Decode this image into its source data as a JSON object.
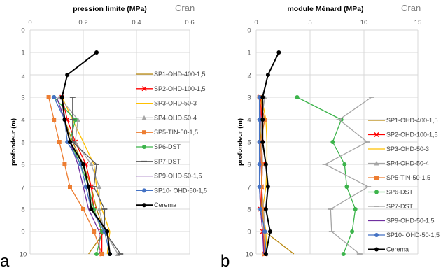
{
  "chart_data": [
    {
      "type": "line",
      "panel_label": "a",
      "title": "pression limite (MPa)",
      "corner_label": "Cran",
      "xlabel": "",
      "ylabel": "profondeur (m)",
      "xlim": [
        0,
        0.6
      ],
      "ylim": [
        0,
        10
      ],
      "x_ticks": [
        "0",
        "0.2",
        "0.4",
        "0.6"
      ],
      "x_tick_values": [
        0,
        0.2,
        0.4,
        0.6
      ],
      "y_ticks": [
        "0",
        "1",
        "2",
        "3",
        "4",
        "5",
        "6",
        "7",
        "8",
        "9",
        "10"
      ],
      "y_tick_values": [
        0,
        1,
        2,
        3,
        4,
        5,
        6,
        7,
        8,
        9,
        10
      ],
      "y_reversed": true,
      "legend_position": "right",
      "series": [
        {
          "name": "SP1-OHD-400-1,5",
          "color": "#b8860b",
          "marker": "none",
          "points": [
            [
              0.12,
              3
            ],
            [
              0.13,
              4
            ],
            [
              0.16,
              5
            ],
            [
              0.2,
              6
            ],
            [
              0.23,
              7
            ],
            [
              0.25,
              8
            ],
            [
              0.28,
              9
            ],
            [
              0.22,
              10
            ]
          ]
        },
        {
          "name": "SP2-OHD-100-1,5",
          "color": "#ff0000",
          "marker": "x",
          "points": [
            [
              0.12,
              3
            ],
            [
              0.14,
              4
            ],
            [
              0.17,
              5
            ],
            [
              0.21,
              6
            ],
            [
              0.23,
              7
            ],
            [
              0.24,
              8
            ],
            [
              0.27,
              9
            ],
            [
              0.27,
              10
            ]
          ]
        },
        {
          "name": "SP3-OHD-50-3",
          "color": "#ffc000",
          "marker": "none",
          "points": [
            [
              0.12,
              3
            ],
            [
              0.16,
              4
            ],
            [
              0.2,
              5
            ],
            [
              0.24,
              6
            ],
            [
              0.25,
              7
            ],
            [
              0.27,
              8
            ],
            [
              0.3,
              9
            ],
            [
              0.29,
              10
            ]
          ]
        },
        {
          "name": "SP4-OHD-50-4",
          "color": "#a5a5a5",
          "marker": "triangle",
          "points": [
            [
              0.11,
              3
            ],
            [
              0.18,
              4
            ],
            [
              0.17,
              5
            ],
            [
              0.23,
              6
            ],
            [
              0.26,
              7
            ],
            [
              0.26,
              8
            ],
            [
              0.28,
              9
            ],
            [
              0.33,
              10
            ]
          ]
        },
        {
          "name": "SP5-TIN-50-1,5",
          "color": "#ed7d31",
          "marker": "square",
          "points": [
            [
              0.07,
              3
            ],
            [
              0.09,
              4
            ],
            [
              0.11,
              5
            ],
            [
              0.13,
              6
            ],
            [
              0.15,
              7
            ],
            [
              0.2,
              8
            ],
            [
              0.24,
              9
            ],
            [
              0.27,
              10
            ]
          ]
        },
        {
          "name": "SP6-DST",
          "color": "#3cb44b",
          "marker": "circle",
          "points": [
            [
              0.09,
              3
            ],
            [
              0.17,
              4
            ],
            [
              0.15,
              5
            ],
            [
              0.19,
              6
            ],
            [
              0.22,
              7
            ],
            [
              0.24,
              8
            ],
            [
              0.27,
              9
            ],
            [
              0.25,
              10
            ]
          ]
        },
        {
          "name": "SP7-DST",
          "color": "#595959",
          "marker": "dash",
          "points": [
            [
              0.16,
              3
            ],
            [
              0.16,
              4
            ],
            [
              0.16,
              5
            ],
            [
              0.25,
              6
            ],
            [
              0.24,
              7
            ],
            [
              0.28,
              8
            ],
            [
              0.28,
              9
            ],
            [
              0.34,
              10
            ]
          ]
        },
        {
          "name": "SP9-OHD-50-1,5",
          "color": "#7030a0",
          "marker": "none",
          "points": [
            [
              0.1,
              3
            ],
            [
              0.13,
              4
            ],
            [
              0.15,
              5
            ],
            [
              0.18,
              6
            ],
            [
              0.2,
              7
            ],
            [
              0.22,
              8
            ],
            [
              0.26,
              9
            ],
            [
              0.26,
              10
            ]
          ]
        },
        {
          "name": "SP10- OHD-50-1,5",
          "color": "#4472c4",
          "marker": "circle",
          "points": [
            [
              0.09,
              3
            ],
            [
              0.13,
              4
            ],
            [
              0.14,
              5
            ],
            [
              0.19,
              6
            ],
            [
              0.21,
              7
            ],
            [
              0.23,
              8
            ],
            [
              0.28,
              9
            ],
            [
              0.3,
              10
            ]
          ]
        },
        {
          "name": "Cerema",
          "color": "#000000",
          "marker": "circle",
          "width": 2,
          "points": [
            [
              0.25,
              1
            ],
            [
              0.14,
              2
            ],
            [
              0.12,
              3
            ],
            [
              0.13,
              4
            ],
            [
              0.15,
              5
            ],
            [
              0.2,
              6
            ],
            [
              0.22,
              7
            ],
            [
              0.23,
              8
            ],
            [
              0.29,
              9
            ],
            [
              0.3,
              10
            ]
          ]
        }
      ]
    },
    {
      "type": "line",
      "panel_label": "b",
      "title": "module Ménard (MPa)",
      "corner_label": "Cran",
      "xlabel": "",
      "ylabel": "profondeur (m)",
      "xlim": [
        0,
        15
      ],
      "ylim": [
        0,
        10
      ],
      "x_ticks": [
        "0",
        "5",
        "10",
        "15"
      ],
      "x_tick_values": [
        0,
        5,
        10,
        15
      ],
      "y_ticks": [
        "0",
        "1",
        "2",
        "3",
        "4",
        "5",
        "6",
        "7",
        "8",
        "9",
        "10"
      ],
      "y_tick_values": [
        0,
        1,
        2,
        3,
        4,
        5,
        6,
        7,
        8,
        9,
        10
      ],
      "y_reversed": true,
      "legend_position": "right",
      "series": [
        {
          "name": "SP1-OHD-400-1,5",
          "color": "#b8860b",
          "marker": "none",
          "points": [
            [
              0.5,
              3
            ],
            [
              0.5,
              4
            ],
            [
              0.4,
              5
            ],
            [
              0.5,
              6
            ],
            [
              0.5,
              7
            ],
            [
              0.5,
              8
            ],
            [
              0.8,
              9
            ],
            [
              3.5,
              10
            ]
          ]
        },
        {
          "name": "SP2-OHD-100-1,5",
          "color": "#ff0000",
          "marker": "x",
          "points": [
            [
              0.4,
              3
            ],
            [
              0.5,
              4
            ],
            [
              0.5,
              5
            ],
            [
              0.6,
              6
            ],
            [
              0.5,
              7
            ],
            [
              0.4,
              8
            ],
            [
              0.6,
              9
            ],
            [
              0.8,
              10
            ]
          ]
        },
        {
          "name": "SP3-OHD-50-3",
          "color": "#ffc000",
          "marker": "none",
          "points": [
            [
              0.5,
              3
            ],
            [
              0.9,
              4
            ],
            [
              1.0,
              5
            ],
            [
              1.0,
              6
            ],
            [
              0.9,
              7
            ],
            [
              0.6,
              8
            ],
            [
              0.9,
              9
            ],
            [
              1.0,
              10
            ]
          ]
        },
        {
          "name": "SP4-OHD-50-4",
          "color": "#a5a5a5",
          "marker": "triangle",
          "points": [
            [
              0.8,
              3
            ],
            [
              0.5,
              4
            ],
            [
              0.5,
              5
            ],
            [
              0.6,
              6
            ],
            [
              0.5,
              7
            ],
            [
              0.7,
              8
            ],
            [
              0.8,
              9
            ],
            [
              0.9,
              10
            ]
          ]
        },
        {
          "name": "SP5-TIN-50-1,5",
          "color": "#ed7d31",
          "marker": "square",
          "points": [
            [
              0.3,
              3
            ],
            [
              0.8,
              4
            ],
            [
              0.4,
              5
            ],
            [
              0.5,
              6
            ],
            [
              0.5,
              7
            ],
            [
              0.6,
              8
            ],
            [
              0.7,
              9
            ],
            [
              0.8,
              10
            ]
          ]
        },
        {
          "name": "SP6-DST",
          "color": "#3cb44b",
          "marker": "circle",
          "points": [
            [
              3.8,
              3
            ],
            [
              7.9,
              4
            ],
            [
              7.1,
              5
            ],
            [
              8.2,
              6
            ],
            [
              8.4,
              7
            ],
            [
              9.2,
              8
            ],
            [
              8.9,
              9
            ],
            [
              8.1,
              10
            ]
          ]
        },
        {
          "name": "SP7-DST",
          "color": "#a5a5a5",
          "marker": "dash",
          "points": [
            [
              10.7,
              3
            ],
            [
              7.7,
              4
            ],
            [
              10.3,
              5
            ],
            [
              6.4,
              6
            ],
            [
              10.4,
              7
            ],
            [
              6.9,
              8
            ],
            [
              7.0,
              9
            ],
            [
              9.6,
              10
            ]
          ]
        },
        {
          "name": "SP9-OHD-50-1,5",
          "color": "#7030a0",
          "marker": "none",
          "points": [
            [
              0.3,
              3
            ],
            [
              0.4,
              4
            ],
            [
              0.3,
              5
            ],
            [
              0.4,
              6
            ],
            [
              0.3,
              7
            ],
            [
              0.4,
              8
            ],
            [
              0.6,
              9
            ],
            [
              0.7,
              10
            ]
          ]
        },
        {
          "name": "SP10- OHD-50-1,5",
          "color": "#4472c4",
          "marker": "circle",
          "points": [
            [
              0.3,
              3
            ],
            [
              0.3,
              4
            ],
            [
              0.3,
              5
            ],
            [
              0.3,
              6
            ],
            [
              0.3,
              7
            ],
            [
              0.4,
              8
            ],
            [
              0.8,
              9
            ],
            [
              0.9,
              10
            ]
          ]
        },
        {
          "name": "Cerema",
          "color": "#000000",
          "marker": "circle",
          "width": 2,
          "points": [
            [
              2.1,
              1
            ],
            [
              1.1,
              2
            ],
            [
              0.6,
              3
            ],
            [
              0.6,
              4
            ],
            [
              0.6,
              5
            ],
            [
              0.9,
              6
            ],
            [
              1.1,
              7
            ],
            [
              0.9,
              8
            ],
            [
              1.3,
              9
            ],
            [
              0.9,
              10
            ]
          ]
        }
      ]
    }
  ]
}
